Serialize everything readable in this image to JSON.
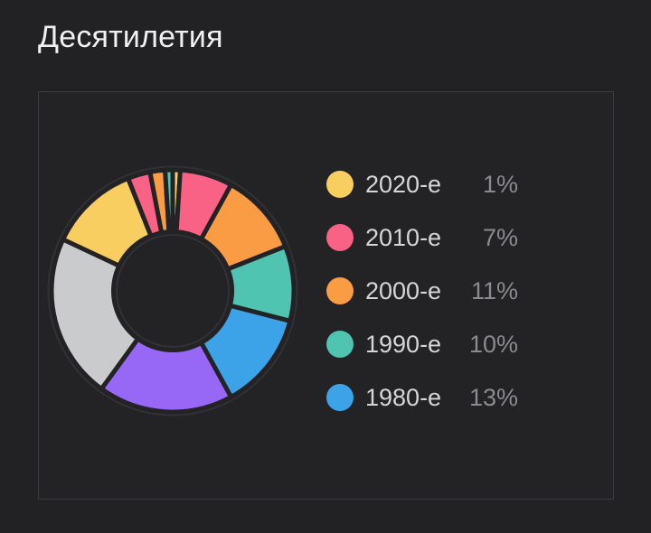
{
  "page": {
    "title": "Десятилетия",
    "background": "#222224",
    "card_border_color": "#3c3c40"
  },
  "chart_data": {
    "type": "donut",
    "title": "Десятилетия",
    "unit": "%",
    "legend_position": "right",
    "start_angle_deg": 0,
    "clockwise": true,
    "inner_radius_ratio": 0.49,
    "segments": [
      {
        "label": "2020-е",
        "percent": 1,
        "color": "#F9CE61"
      },
      {
        "label": "2010-е",
        "percent": 7,
        "color": "#F96185"
      },
      {
        "label": "2000-е",
        "percent": 11,
        "color": "#F99C43"
      },
      {
        "label": "1990-е",
        "percent": 10,
        "color": "#4FC4B1"
      },
      {
        "label": "1980-е",
        "percent": 13,
        "color": "#3CA3E8"
      },
      {
        "label": null,
        "percent": 18,
        "color": "#9767F5"
      },
      {
        "label": null,
        "percent": 22,
        "color": "#CACBCD"
      },
      {
        "label": null,
        "percent": 12,
        "color": "#F9CE61"
      },
      {
        "label": null,
        "percent": 3,
        "color": "#F96185"
      },
      {
        "label": null,
        "percent": 2,
        "color": "#F99C43"
      },
      {
        "label": null,
        "percent": 1,
        "color": "#4FC4B1"
      }
    ],
    "legend": {
      "items": [
        {
          "label": "2020-е",
          "value": "1%",
          "color": "#F9CE61"
        },
        {
          "label": "2010-е",
          "value": "7%",
          "color": "#F96185"
        },
        {
          "label": "2000-е",
          "value": "11%",
          "color": "#F99C43"
        },
        {
          "label": "1990-е",
          "value": "10%",
          "color": "#4FC4B1"
        },
        {
          "label": "1980-е",
          "value": "13%",
          "color": "#3CA3E8"
        }
      ]
    }
  }
}
